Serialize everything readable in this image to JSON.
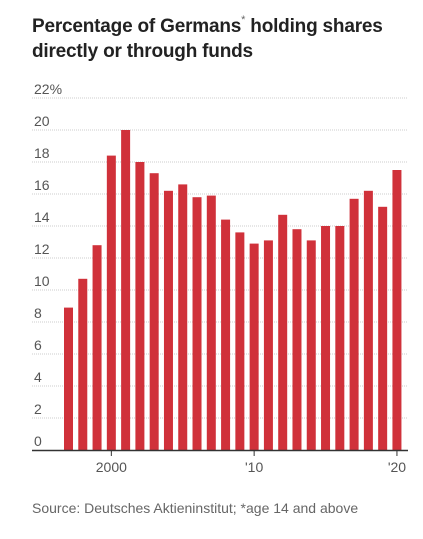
{
  "title": {
    "before": "Percentage of Germans",
    "marker": "*",
    "after": " holding shares directly or through funds"
  },
  "source": "Source: Deutsches Aktieninstitut; *age 14 and above",
  "colors": {
    "bar": "#d0313a",
    "grid": "#cccccc",
    "axis": "#333333",
    "text": "#555555"
  },
  "chart_data": {
    "type": "bar",
    "title": "Percentage of Germans* holding shares directly or through funds",
    "xlabel": "",
    "ylabel": "",
    "ylim": [
      0,
      22
    ],
    "categories": [
      1997,
      1998,
      1999,
      2000,
      2001,
      2002,
      2003,
      2004,
      2005,
      2006,
      2007,
      2008,
      2009,
      2010,
      2011,
      2012,
      2013,
      2014,
      2015,
      2016,
      2017,
      2018,
      2019,
      2020
    ],
    "values": [
      8.9,
      10.7,
      12.8,
      18.4,
      20.0,
      18.0,
      17.3,
      16.2,
      16.6,
      15.8,
      15.9,
      14.4,
      13.6,
      12.9,
      13.1,
      14.7,
      13.8,
      13.1,
      14.0,
      14.0,
      15.7,
      16.2,
      15.2,
      17.5
    ],
    "y_ticks": [
      "22%",
      "20",
      "18",
      "16",
      "14",
      "12",
      "10",
      "8",
      "6",
      "4",
      "2",
      "0"
    ],
    "x_ticks": [
      {
        "year": 2000,
        "label": "2000"
      },
      {
        "year": 2010,
        "label": "'10"
      },
      {
        "year": 2020,
        "label": "'20"
      }
    ],
    "grid": true
  }
}
